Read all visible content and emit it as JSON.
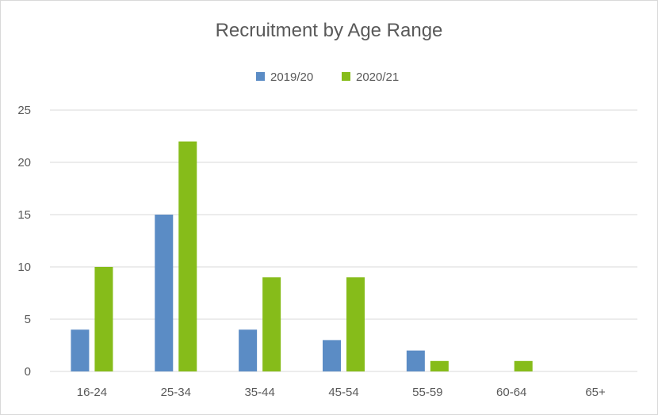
{
  "chart_data": {
    "type": "bar",
    "title": "Recruitment by Age Range",
    "xlabel": "",
    "ylabel": "",
    "categories": [
      "16-24",
      "25-34",
      "35-44",
      "45-54",
      "55-59",
      "60-64",
      "65+"
    ],
    "series": [
      {
        "name": "2019/20",
        "color": "#5b8cc5",
        "values": [
          4,
          15,
          4,
          3,
          2,
          0,
          0
        ]
      },
      {
        "name": "2020/21",
        "color": "#86bc1a",
        "values": [
          10,
          22,
          9,
          9,
          1,
          1,
          0
        ]
      }
    ],
    "ylim": [
      0,
      25
    ],
    "yticks": [
      0,
      5,
      10,
      15,
      20,
      25
    ],
    "grid": true,
    "legend_position": "top"
  }
}
